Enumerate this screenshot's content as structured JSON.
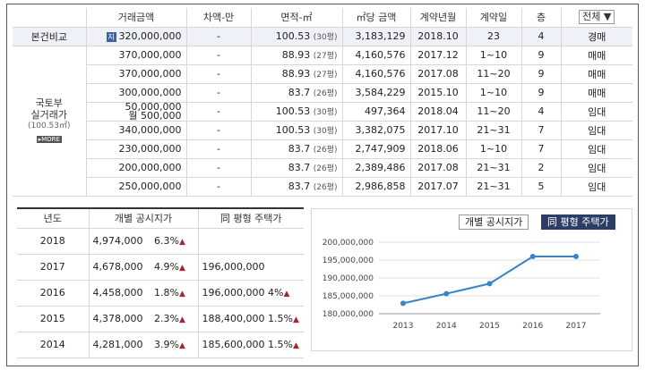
{
  "trade_table": {
    "headers": [
      "거래금액",
      "차액-만",
      "면적-㎡",
      "㎡당 금액",
      "계약년월",
      "계약일",
      "층"
    ],
    "filter_value": "전체",
    "first_row": {
      "label": "본건비교",
      "badge": "지",
      "price": "320,000,000",
      "diff": "-",
      "area": "100.53",
      "pyeong": "(30평)",
      "per_m2": "3,183,129",
      "ym": "2018.10",
      "day": "23",
      "floor": "4",
      "type": "경매"
    },
    "group": {
      "title_line1": "국토부",
      "title_line2": "실거래가",
      "sub": "(100.53㎡)",
      "more": "MORE"
    },
    "rows": [
      {
        "price": "370,000,000",
        "price2": "",
        "diff": "-",
        "area": "88.93",
        "pyeong": "(27평)",
        "per_m2": "4,160,576",
        "ym": "2017.12",
        "day": "1~10",
        "floor": "9",
        "type": "매매"
      },
      {
        "price": "370,000,000",
        "price2": "",
        "diff": "-",
        "area": "88.93",
        "pyeong": "(27평)",
        "per_m2": "4,160,576",
        "ym": "2017.08",
        "day": "11~20",
        "floor": "9",
        "type": "매매"
      },
      {
        "price": "300,000,000",
        "price2": "",
        "diff": "-",
        "area": "83.7",
        "pyeong": "(26평)",
        "per_m2": "3,584,229",
        "ym": "2015.10",
        "day": "1~10",
        "floor": "9",
        "type": "매매"
      },
      {
        "price": "50,000,000",
        "price2": "월 500,000",
        "diff": "-",
        "area": "100.53",
        "pyeong": "(30평)",
        "per_m2": "497,364",
        "ym": "2018.04",
        "day": "11~20",
        "floor": "4",
        "type": "임대"
      },
      {
        "price": "340,000,000",
        "price2": "",
        "diff": "-",
        "area": "100.53",
        "pyeong": "(30평)",
        "per_m2": "3,382,075",
        "ym": "2017.10",
        "day": "21~31",
        "floor": "7",
        "type": "임대"
      },
      {
        "price": "230,000,000",
        "price2": "",
        "diff": "-",
        "area": "83.7",
        "pyeong": "(26평)",
        "per_m2": "2,747,909",
        "ym": "2018.06",
        "day": "1~10",
        "floor": "7",
        "type": "임대"
      },
      {
        "price": "200,000,000",
        "price2": "",
        "diff": "-",
        "area": "83.7",
        "pyeong": "(26평)",
        "per_m2": "2,389,486",
        "ym": "2017.08",
        "day": "21~31",
        "floor": "2",
        "type": "임대"
      },
      {
        "price": "250,000,000",
        "price2": "",
        "diff": "-",
        "area": "83.7",
        "pyeong": "(26평)",
        "per_m2": "2,986,858",
        "ym": "2017.07",
        "day": "21~31",
        "floor": "5",
        "type": "임대"
      }
    ]
  },
  "price_table": {
    "headers": [
      "년도",
      "개별 공시지가",
      "同 평형 주택가"
    ],
    "up_arrow": "▲",
    "rows": [
      {
        "year": "2018",
        "land": "4,974,000",
        "land_pct": "6.3%",
        "house": "",
        "house_pct": ""
      },
      {
        "year": "2017",
        "land": "4,678,000",
        "land_pct": "4.9%",
        "house": "196,000,000",
        "house_pct": ""
      },
      {
        "year": "2016",
        "land": "4,458,000",
        "land_pct": "1.8%",
        "house": "196,000,000",
        "house_pct": "4%"
      },
      {
        "year": "2015",
        "land": "4,378,000",
        "land_pct": "2.3%",
        "house": "188,400,000",
        "house_pct": "1.5%"
      },
      {
        "year": "2014",
        "land": "4,281,000",
        "land_pct": "3.9%",
        "house": "185,600,000",
        "house_pct": "1.5%"
      }
    ]
  },
  "chart_panel": {
    "tab_land": "개별 공시지가",
    "tab_house": "同 평형 주택가",
    "active_tab": "tab_house"
  },
  "chart_data": {
    "type": "line",
    "x": [
      "2013",
      "2014",
      "2015",
      "2016",
      "2017"
    ],
    "series": [
      {
        "values": [
          182900000,
          185600000,
          188400000,
          196000000,
          196000000
        ]
      }
    ],
    "ylim": [
      180000000,
      200000000
    ],
    "yticks": [
      "200,000,000",
      "195,000,000",
      "190,000,000",
      "185,000,000",
      "180,000,000"
    ],
    "color": "#3a84c6",
    "grid": true
  },
  "colors": {
    "arrow": "#a6262e",
    "active_tab": "#2d3e66"
  }
}
